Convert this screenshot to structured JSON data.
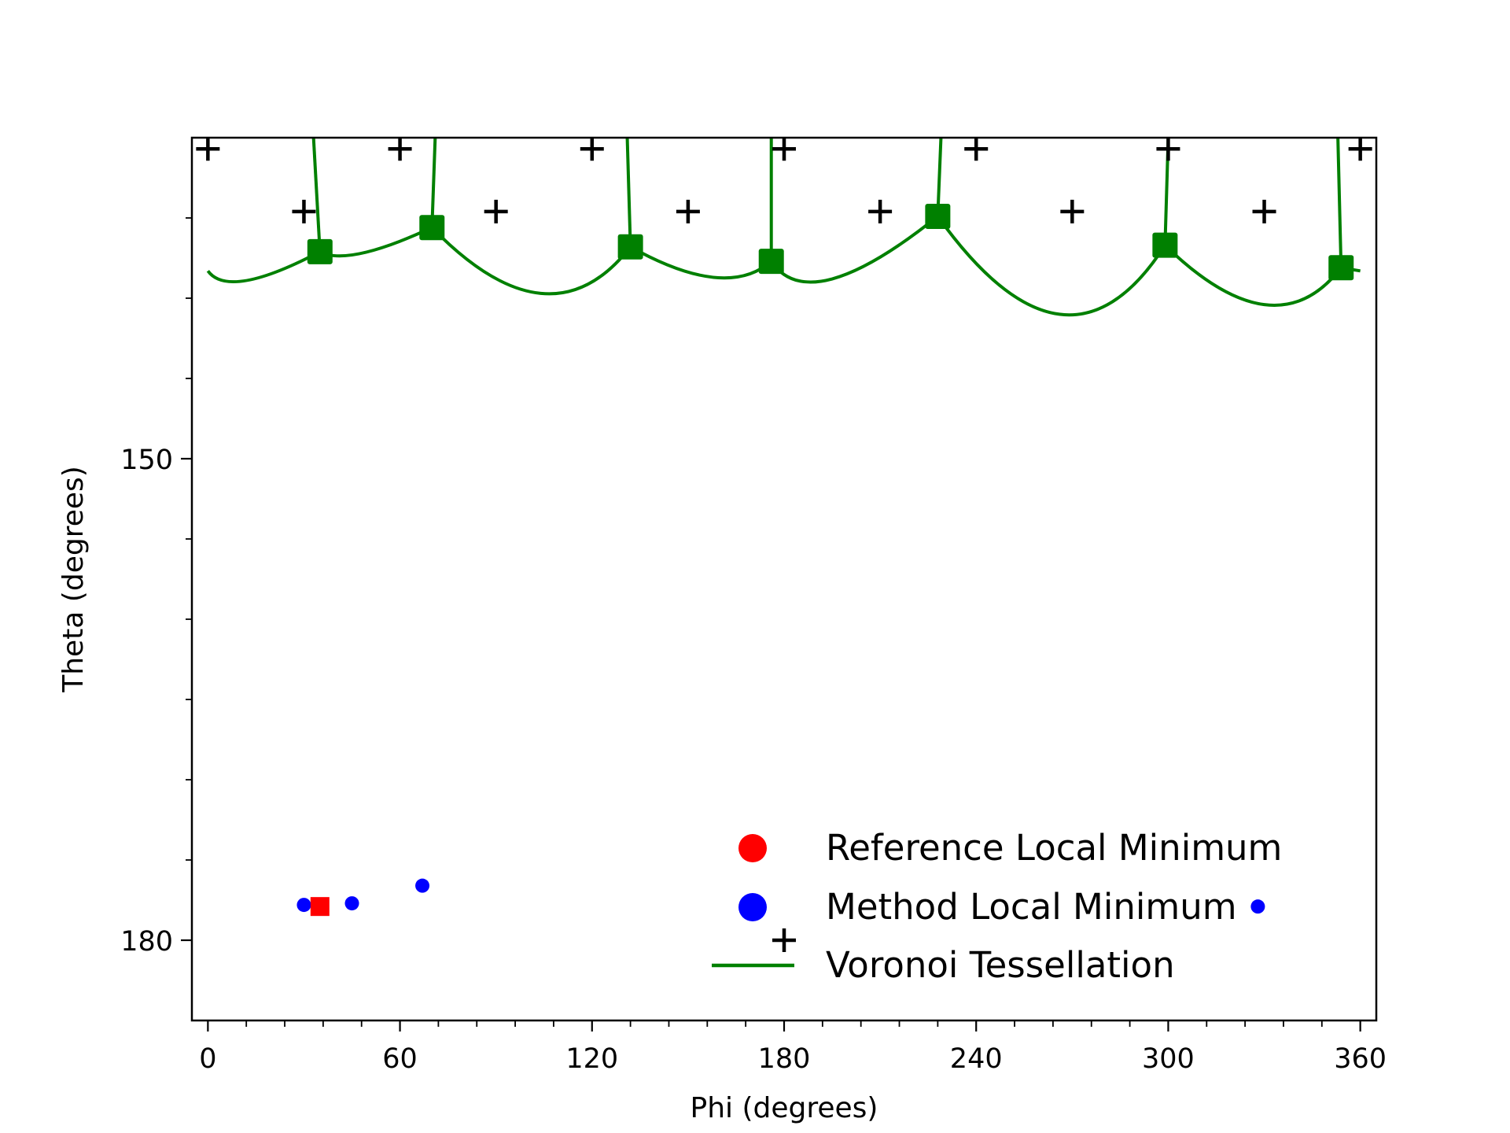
{
  "chart_data": {
    "type": "scatter",
    "xlabel": "Phi (degrees)",
    "ylabel": "Theta (degrees)",
    "xlim": [
      -5,
      365
    ],
    "ylim": [
      185,
      130
    ],
    "x_ticks": [
      0,
      60,
      120,
      180,
      240,
      300,
      360
    ],
    "x_tick_labels": [
      "0",
      "60",
      "120",
      "180",
      "240",
      "300",
      "360"
    ],
    "x_minor_step": 12,
    "y_ticks": [
      150,
      180
    ],
    "y_tick_labels": [
      "150",
      "180"
    ],
    "y_minor_ticks": [
      135,
      140,
      145,
      155,
      160,
      165,
      170,
      175
    ],
    "grid": false,
    "legend": {
      "placement": "lower-right",
      "entries": [
        {
          "label": "Reference Local Minimum",
          "marker": "circle",
          "color": "#ff0000"
        },
        {
          "label": "Method Local Minimum",
          "marker": "circle",
          "color": "#0000ff"
        },
        {
          "label": "Voronoi Tessellation",
          "marker": "line",
          "color": "#008000"
        }
      ]
    },
    "colors": {
      "reference": "#ff0000",
      "method": "#0000ff",
      "voronoi": "#008000",
      "sample": "#000000"
    },
    "reference_minimum": [
      {
        "x": 35,
        "y": 177.9
      }
    ],
    "method_minima": [
      {
        "x": 30,
        "y": 177.8
      },
      {
        "x": 45,
        "y": 177.7
      },
      {
        "x": 67,
        "y": 176.6
      },
      {
        "x": 328,
        "y": 177.9
      }
    ],
    "sample_points": [
      {
        "x": 0,
        "y": 130.7
      },
      {
        "x": 60,
        "y": 130.7
      },
      {
        "x": 120,
        "y": 130.7
      },
      {
        "x": 180,
        "y": 130.7
      },
      {
        "x": 240,
        "y": 130.7
      },
      {
        "x": 300,
        "y": 130.7
      },
      {
        "x": 360,
        "y": 130.7
      },
      {
        "x": 30,
        "y": 134.6
      },
      {
        "x": 90,
        "y": 134.6
      },
      {
        "x": 150,
        "y": 134.6
      },
      {
        "x": 210,
        "y": 134.6
      },
      {
        "x": 270,
        "y": 134.6
      },
      {
        "x": 330,
        "y": 134.6
      },
      {
        "x": 180,
        "y": 180.0
      }
    ],
    "voronoi_vertices": [
      {
        "x": 35,
        "y": 137.1
      },
      {
        "x": 70,
        "y": 135.6
      },
      {
        "x": 132,
        "y": 136.8
      },
      {
        "x": 176,
        "y": 137.7
      },
      {
        "x": 228,
        "y": 134.9
      },
      {
        "x": 299,
        "y": 136.7
      },
      {
        "x": 354,
        "y": 138.1
      }
    ],
    "voronoi_arcs": [
      {
        "x0": 0,
        "y0": 138.3,
        "x1": 35,
        "y1": 137.1,
        "xm": 12,
        "ym": 138.9
      },
      {
        "x0": 35,
        "y0": 137.1,
        "x1": 70,
        "y1": 135.6,
        "xm": 48,
        "ym": 137.2
      },
      {
        "x0": 70,
        "y0": 135.6,
        "x1": 132,
        "y1": 136.8,
        "xm": 104,
        "ym": 139.7
      },
      {
        "x0": 132,
        "y0": 136.8,
        "x1": 176,
        "y1": 137.7,
        "xm": 158,
        "ym": 138.7
      },
      {
        "x0": 176,
        "y0": 137.7,
        "x1": 228,
        "y1": 134.9,
        "xm": 195,
        "ym": 138.8
      },
      {
        "x0": 228,
        "y0": 134.9,
        "x1": 299,
        "y1": 136.7,
        "xm": 266,
        "ym": 141.0
      },
      {
        "x0": 299,
        "y0": 136.7,
        "x1": 354,
        "y1": 138.1,
        "xm": 330,
        "ym": 140.4
      },
      {
        "x0": 354,
        "y0": 138.1,
        "x1": 360,
        "y1": 138.3,
        "xm": 357,
        "ym": 138.2
      }
    ],
    "voronoi_edges_up": [
      {
        "x0": 35,
        "y0": 137.1,
        "x1": 33,
        "y1": 130
      },
      {
        "x0": 70,
        "y0": 135.6,
        "x1": 71,
        "y1": 130
      },
      {
        "x0": 132,
        "y0": 136.8,
        "x1": 131,
        "y1": 130
      },
      {
        "x0": 176,
        "y0": 137.7,
        "x1": 176,
        "y1": 130
      },
      {
        "x0": 228,
        "y0": 134.9,
        "x1": 229,
        "y1": 130
      },
      {
        "x0": 299,
        "y0": 136.7,
        "x1": 300,
        "y1": 130
      },
      {
        "x0": 354,
        "y0": 138.1,
        "x1": 353,
        "y1": 130
      }
    ]
  }
}
